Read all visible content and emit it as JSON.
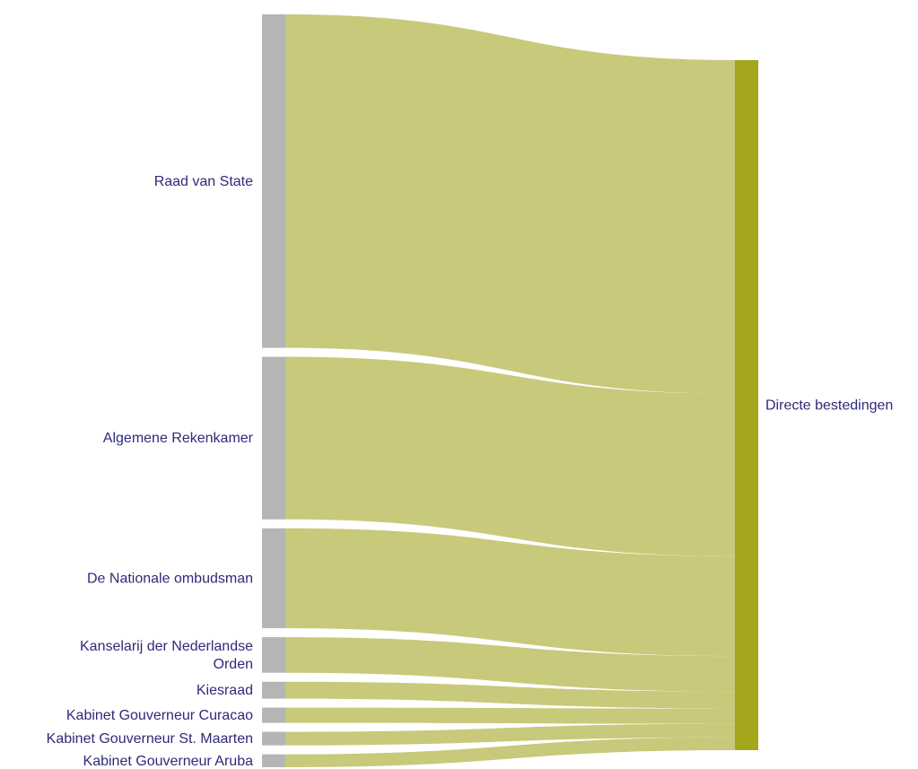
{
  "chart_data": {
    "type": "sankey",
    "title": "",
    "sources": [
      {
        "name_lines": [
          "Raad van State"
        ],
        "value": 98.5
      },
      {
        "name_lines": [
          "Algemene Rekenkamer"
        ],
        "value": 48.0
      },
      {
        "name_lines": [
          "De Nationale ombudsman"
        ],
        "value": 29.5
      },
      {
        "name_lines": [
          "Kanselarij der Nederlandse",
          "Orden"
        ],
        "value": 10.5
      },
      {
        "name_lines": [
          "Kiesraad"
        ],
        "value": 5.0
      },
      {
        "name_lines": [
          "Kabinet Gouverneur Curacao"
        ],
        "value": 4.5
      },
      {
        "name_lines": [
          "Kabinet Gouverneur St. Maarten"
        ],
        "value": 4.0
      },
      {
        "name_lines": [
          "Kabinet Gouverneur Aruba"
        ],
        "value": 3.8
      }
    ],
    "target": {
      "name_lines": [
        "Directe bestedingen"
      ]
    },
    "colors": {
      "source_node": "#b5b5b5",
      "target_node": "#a4a61b",
      "link": "#c8c97a",
      "label": "#2e2a7a"
    }
  }
}
